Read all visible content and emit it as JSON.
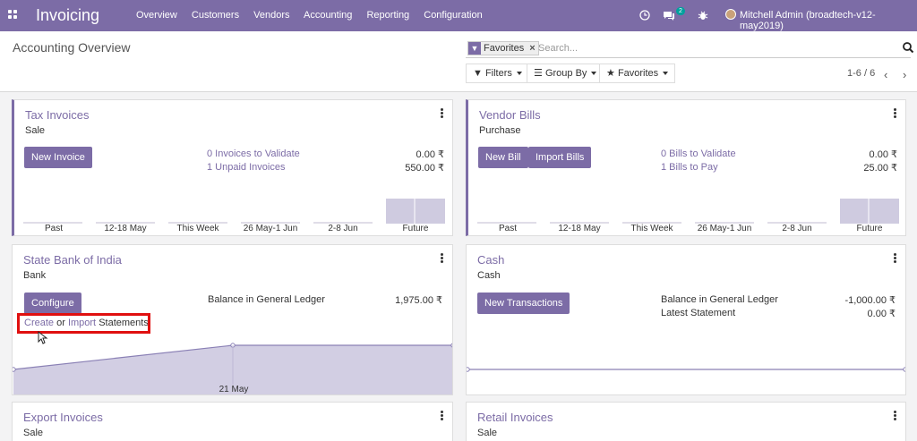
{
  "topnav": {
    "app_title": "Invoicing",
    "menu": [
      "Overview",
      "Customers",
      "Vendors",
      "Accounting",
      "Reporting",
      "Configuration"
    ],
    "chat_count": "2",
    "user": "Mitchell Admin (broadtech-v12-may2019)"
  },
  "control": {
    "title": "Accounting Overview",
    "facet_label": "Favorites",
    "search_placeholder": "Search...",
    "filters_label": "Filters",
    "groupby_label": "Group By",
    "favorites_label": "Favorites",
    "pager": "1-6 / 6"
  },
  "cards": {
    "tax": {
      "title": "Tax Invoices",
      "type": "Sale",
      "button": "New Invoice",
      "line1": "0 Invoices to Validate",
      "amt1": "0.00 ₹",
      "line2": "1 Unpaid Invoices",
      "amt2": "550.00 ₹",
      "xlabels": [
        "Past",
        "12-18 May",
        "This Week",
        "26 May-1 Jun",
        "2-8 Jun",
        "Future"
      ]
    },
    "vendor": {
      "title": "Vendor Bills",
      "type": "Purchase",
      "button1": "New Bill",
      "button2": "Import Bills",
      "line1": "0 Bills to Validate",
      "amt1": "0.00 ₹",
      "line2": "1 Bills to Pay",
      "amt2": "25.00 ₹",
      "xlabels": [
        "Past",
        "12-18 May",
        "This Week",
        "26 May-1 Jun",
        "2-8 Jun",
        "Future"
      ]
    },
    "bank": {
      "title": "State Bank of India",
      "type": "Bank",
      "button": "Configure",
      "balance_label": "Balance in General Ledger",
      "balance": "1,975.00 ₹",
      "create": "Create",
      "or": "or",
      "import": "Import",
      "statements": "Statements",
      "xlabel": "21 May"
    },
    "cash": {
      "title": "Cash",
      "type": "Cash",
      "button": "New Transactions",
      "balance_label": "Balance in General Ledger",
      "balance": "-1,000.00 ₹",
      "stmt_label": "Latest Statement",
      "stmt": "0.00 ₹"
    },
    "export": {
      "title": "Export Invoices",
      "type": "Sale"
    },
    "retail": {
      "title": "Retail Invoices",
      "type": "Sale"
    }
  }
}
